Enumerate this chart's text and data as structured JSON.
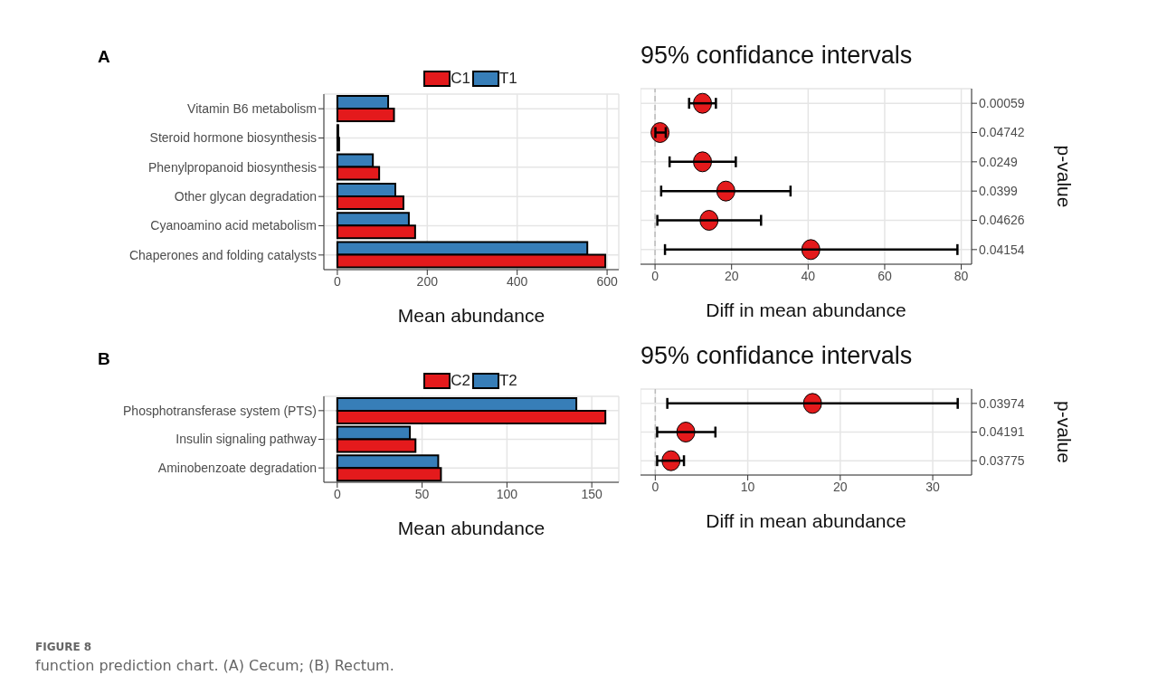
{
  "chart_data": [
    {
      "type": "bar",
      "title": "A",
      "orientation": "horizontal",
      "categories": [
        "Vitamin B6 metabolism",
        "Steroid hormone biosynthesis",
        "Phenylpropanoid biosynthesis",
        "Other glycan degradation",
        "Cyanoamino acid metabolism",
        "Chaperones and folding catalysts"
      ],
      "series": [
        {
          "name": "C1",
          "color": "#e41a1c",
          "values": [
            126,
            4,
            93,
            147,
            173,
            596
          ]
        },
        {
          "name": "T1",
          "color": "#377eb8",
          "values": [
            113,
            2,
            79,
            129,
            159,
            556
          ]
        }
      ],
      "xlim": [
        -30,
        626
      ],
      "xticks": [
        0,
        200,
        400,
        600
      ],
      "xlabel": "Mean abundance",
      "grid": true,
      "legend": "top"
    },
    {
      "type": "scatter",
      "orientation": "horizontal",
      "title": "95% confidance intervals",
      "categories": [
        "0.00059",
        "0.04742",
        "0.0249",
        "0.0399",
        "0.04626",
        "0.04154"
      ],
      "values": [
        12.4,
        1.3,
        12.4,
        18.5,
        14.1,
        40.7
      ],
      "errors": [
        [
          8.9,
          15.9
        ],
        [
          0.1,
          2.8
        ],
        [
          3.8,
          21.1
        ],
        [
          1.6,
          35.4
        ],
        [
          0.6,
          27.7
        ],
        [
          2.6,
          79.0
        ]
      ],
      "color": "#e41a1c",
      "marker": "circle",
      "xlim": [
        -3.8,
        82.7
      ],
      "xticks": [
        0,
        20,
        40,
        60,
        80
      ],
      "xlabel": "Diff in mean abundance",
      "y2label": "p-value",
      "grid": true,
      "ref_lines": [
        {
          "axis": "x",
          "value": 0,
          "color": "#bbbbbb",
          "line_style": "dashed"
        }
      ]
    },
    {
      "type": "bar",
      "title": "B",
      "orientation": "horizontal",
      "categories": [
        "Phosphotransferase system (PTS)",
        "Insulin signaling pathway",
        "Aminobenzoate degradation"
      ],
      "series": [
        {
          "name": "C2",
          "color": "#e41a1c",
          "values": [
            158,
            46.1,
            61.1
          ]
        },
        {
          "name": "T2",
          "color": "#377eb8",
          "values": [
            140.9,
            42.8,
            59.5
          ]
        }
      ],
      "xlim": [
        -7.9,
        165.9
      ],
      "xticks": [
        0,
        50,
        100,
        150
      ],
      "xlabel": "Mean abundance",
      "grid": true,
      "legend": "top"
    },
    {
      "type": "scatter",
      "orientation": "horizontal",
      "title": "95% confidance intervals",
      "categories": [
        "0.03974",
        "0.04191",
        "0.03775"
      ],
      "values": [
        17.0,
        3.3,
        1.7
      ],
      "errors": [
        [
          1.3,
          32.7
        ],
        [
          0.2,
          6.5
        ],
        [
          0.2,
          3.1
        ]
      ],
      "color": "#e41a1c",
      "marker": "circle",
      "xlim": [
        -1.6,
        34.2
      ],
      "xticks": [
        0,
        10,
        20,
        30
      ],
      "xlabel": "Diff in mean abundance",
      "y2label": "p-value",
      "grid": true,
      "ref_lines": [
        {
          "axis": "x",
          "value": 0,
          "color": "#bbbbbb",
          "line_style": "dashed"
        }
      ],
      "annotations": [
        "FIGURE 8",
        "function prediction chart. (A) Cecum; (B) Rectum."
      ]
    }
  ]
}
